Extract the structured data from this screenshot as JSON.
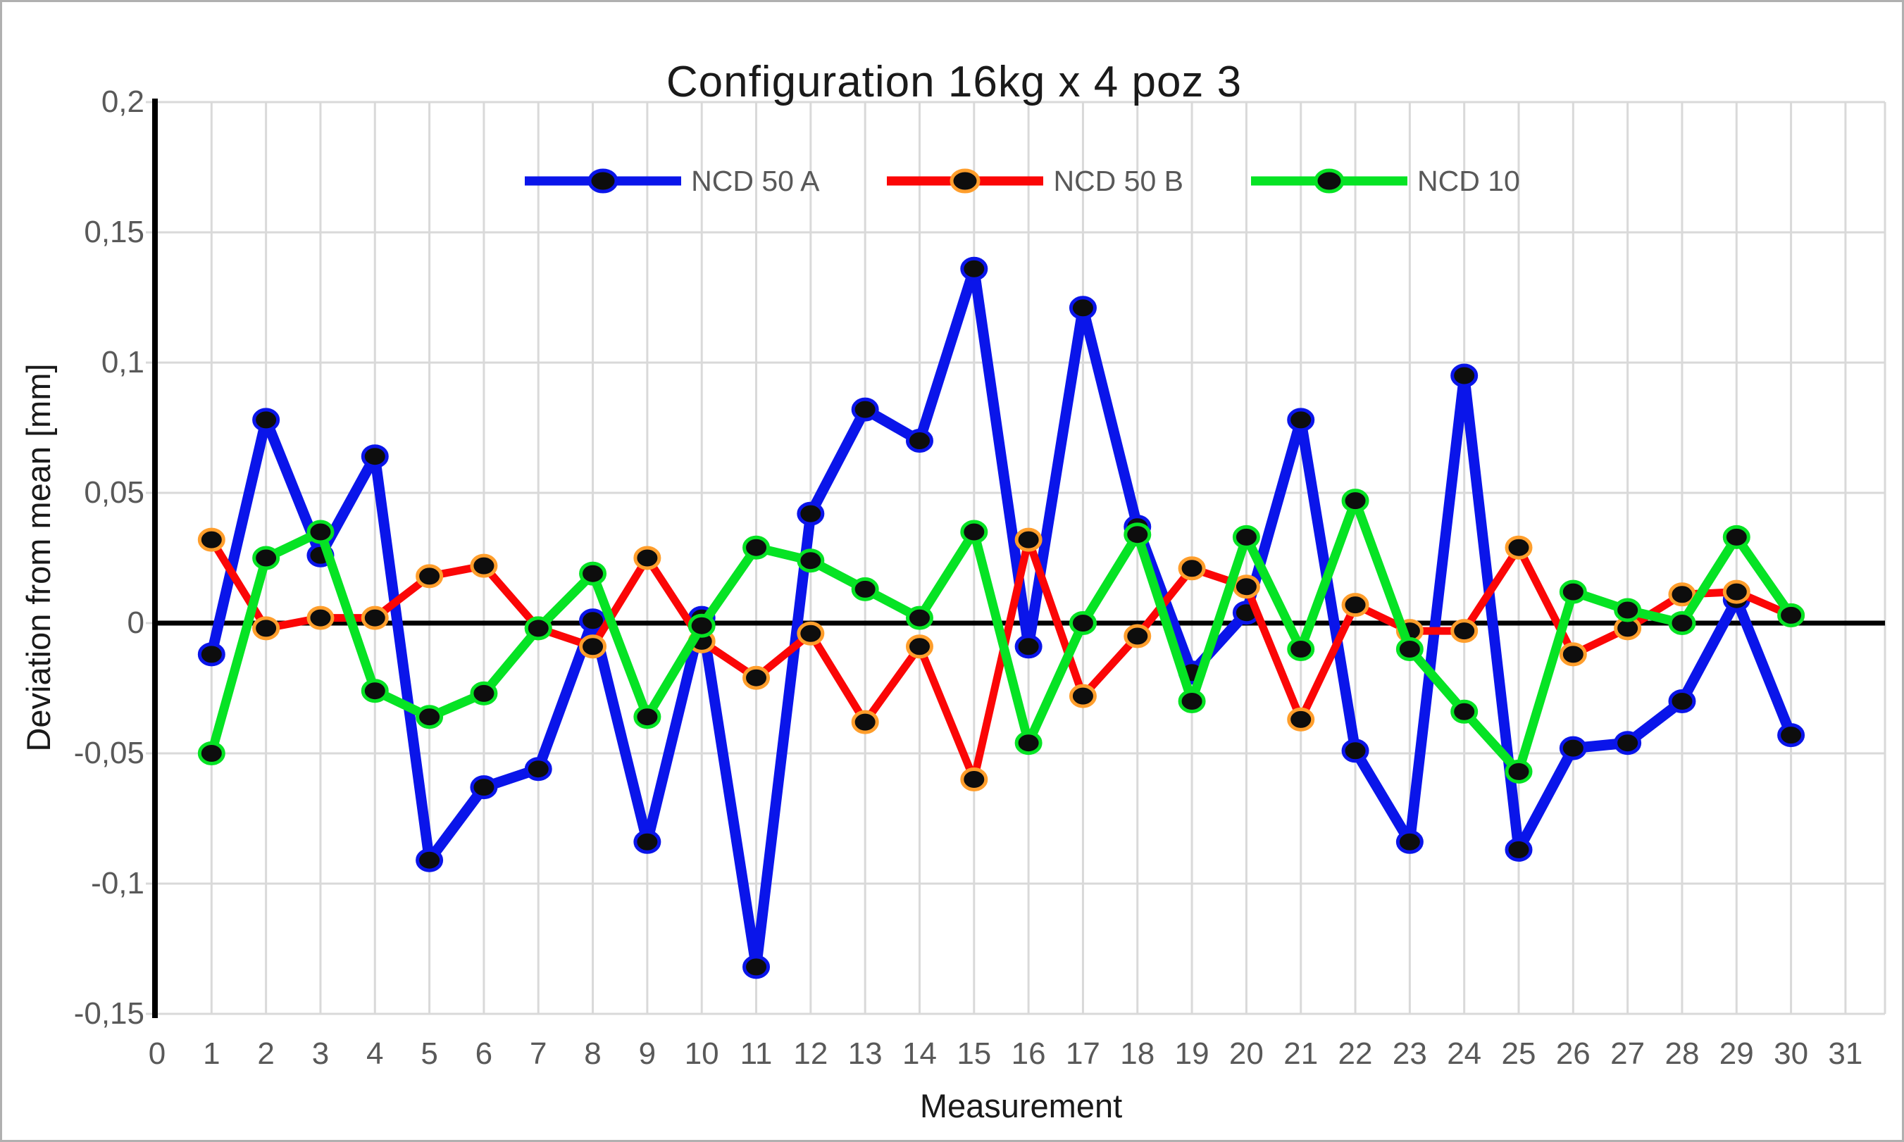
{
  "window": {
    "background": "#ffffff",
    "border_color": "#b0b0b0"
  },
  "chart_data": {
    "type": "line",
    "title": "Configuration 16kg x 4 poz 3",
    "xlabel": "Measurement",
    "ylabel": "Deviation from mean [mm]",
    "decimal_style": "comma",
    "grid": true,
    "legend_position": "top-center",
    "xlim": [
      0,
      31.7
    ],
    "ylim": [
      -0.15,
      0.2
    ],
    "x_ticks": [
      "0",
      "1",
      "2",
      "3",
      "4",
      "5",
      "6",
      "7",
      "8",
      "9",
      "10",
      "11",
      "12",
      "13",
      "14",
      "15",
      "16",
      "17",
      "18",
      "19",
      "20",
      "21",
      "22",
      "23",
      "24",
      "25",
      "26",
      "27",
      "28",
      "29",
      "30",
      "31"
    ],
    "y_ticks": [
      {
        "label": "0,2",
        "value": 0.2
      },
      {
        "label": "0,15",
        "value": 0.15
      },
      {
        "label": "0,1",
        "value": 0.1
      },
      {
        "label": "0,05",
        "value": 0.05
      },
      {
        "label": "0",
        "value": 0
      },
      {
        "label": "-0,05",
        "value": -0.05
      },
      {
        "label": "-0,1",
        "value": -0.1
      },
      {
        "label": "-0,15",
        "value": -0.15
      }
    ],
    "x": [
      1,
      2,
      3,
      4,
      5,
      6,
      7,
      8,
      9,
      10,
      11,
      12,
      13,
      14,
      15,
      16,
      17,
      18,
      19,
      20,
      21,
      22,
      23,
      24,
      25,
      26,
      27,
      28,
      29,
      30
    ],
    "series": [
      {
        "name": "NCD 50 A",
        "color": "#0a15ea",
        "marker_ring": "#0a15ea",
        "line_width": 15,
        "values": [
          -0.012,
          0.078,
          0.026,
          0.064,
          -0.091,
          -0.063,
          -0.056,
          0.001,
          -0.084,
          0.002,
          -0.132,
          0.042,
          0.082,
          0.07,
          0.136,
          -0.009,
          0.121,
          0.037,
          -0.019,
          0.004,
          0.078,
          -0.049,
          -0.084,
          0.095,
          -0.087,
          -0.048,
          -0.046,
          -0.03,
          0.009,
          -0.043
        ]
      },
      {
        "name": "NCD 50 B",
        "color": "#fb0606",
        "marker_ring": "#ff9e2c",
        "line_width": 11,
        "values": [
          0.032,
          -0.002,
          0.002,
          0.002,
          0.018,
          0.022,
          -0.002,
          -0.009,
          0.025,
          -0.007,
          -0.021,
          -0.004,
          -0.038,
          -0.009,
          -0.06,
          0.032,
          -0.028,
          -0.005,
          0.021,
          0.014,
          -0.037,
          0.007,
          -0.003,
          -0.003,
          0.029,
          -0.012,
          -0.002,
          0.011,
          0.012,
          0.003
        ]
      },
      {
        "name": "NCD 10",
        "color": "#06e324",
        "marker_ring": "#06e324",
        "line_width": 13,
        "values": [
          -0.05,
          0.025,
          0.035,
          -0.026,
          -0.036,
          -0.027,
          -0.002,
          0.019,
          -0.036,
          -0.001,
          0.029,
          0.024,
          0.013,
          0.002,
          0.035,
          -0.046,
          0.0,
          0.034,
          -0.03,
          0.033,
          -0.01,
          0.047,
          -0.01,
          -0.034,
          -0.057,
          0.012,
          0.005,
          0.0,
          0.033,
          0.003
        ]
      }
    ],
    "colors": {
      "grid": "#d9d9d9",
      "axis_line": "#000000",
      "zero_line": "#000000",
      "tick_text": "#595959",
      "title_text": "#1a1a1a",
      "marker_fill": "#0d0d0d"
    }
  }
}
